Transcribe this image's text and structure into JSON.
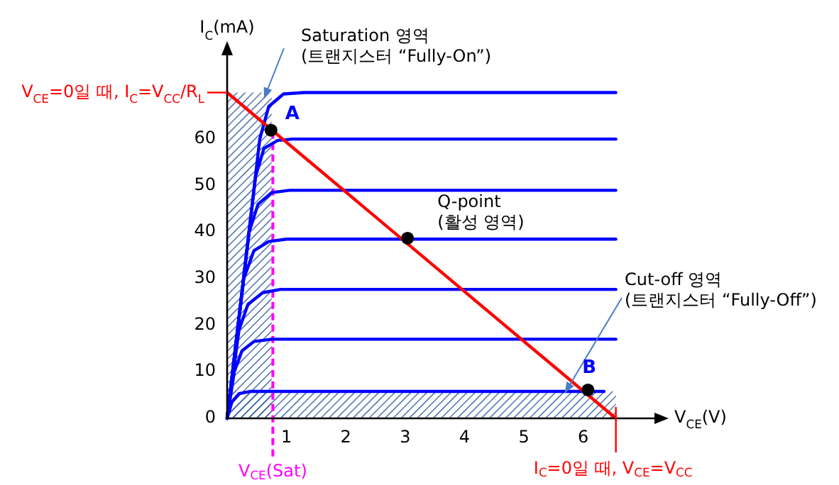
{
  "chart_data": {
    "type": "line",
    "xlabel": "V$_{CE}$(V)",
    "ylabel": "I$_{C}$(mA)",
    "xlim": [
      0,
      7.2
    ],
    "xticks": [
      1,
      2,
      3,
      4,
      5,
      6
    ],
    "ylim": [
      0,
      78
    ],
    "yticks": [
      0,
      10,
      20,
      30,
      40,
      50,
      60
    ],
    "grid": false,
    "line_style": "solid",
    "series": [
      {
        "color": "#0000ff",
        "x": [
          0,
          0.08,
          0.2,
          0.4,
          6.35
        ],
        "values": [
          0,
          3.5,
          5.3,
          5.8,
          5.8
        ]
      },
      {
        "color": "#0000ff",
        "x": [
          0,
          0.12,
          0.25,
          0.45,
          0.75,
          6.55
        ],
        "values": [
          0,
          10,
          14.5,
          16.5,
          17,
          17
        ]
      },
      {
        "color": "#0000ff",
        "x": [
          0,
          0.2,
          0.35,
          0.6,
          0.9,
          6.55
        ],
        "values": [
          0,
          19,
          24.5,
          27,
          27.7,
          27.7
        ]
      },
      {
        "color": "#0000ff",
        "x": [
          0,
          0.28,
          0.45,
          0.7,
          1.0,
          6.55
        ],
        "values": [
          0,
          30,
          36,
          38,
          38.5,
          38.5
        ]
      },
      {
        "color": "#0000ff",
        "x": [
          0,
          0.37,
          0.52,
          0.75,
          1.05,
          6.55
        ],
        "values": [
          0,
          40,
          46,
          48.5,
          49,
          49
        ]
      },
      {
        "color": "#0000ff",
        "x": [
          0,
          0.48,
          0.62,
          0.85,
          1.1,
          6.55
        ],
        "values": [
          0,
          52,
          58,
          59.7,
          60,
          60
        ]
      },
      {
        "color": "#0000ff",
        "x": [
          0,
          0.55,
          0.7,
          0.95,
          1.3,
          6.55
        ],
        "values": [
          0,
          60,
          67,
          69.7,
          70,
          70
        ]
      },
      {
        "color": "#ff0000",
        "x": [
          0,
          6.55
        ],
        "values": [
          70,
          0
        ]
      },
      {
        "type": "scatter",
        "marker": "circle",
        "color": "#000000",
        "x": [
          0.74,
          3.04,
          6.08
        ],
        "values": [
          61.9,
          38.7,
          6.1
        ]
      }
    ],
    "ref_lines": [
      {
        "axis": "x",
        "value": 0.77,
        "label": "V$_{CE}$(Sat)",
        "color": "#ff00ff",
        "line_style": "dashed"
      }
    ],
    "bands": [
      {
        "axis": "x",
        "from": 0,
        "to": 0.75,
        "label": "Saturation 영역\n(트랜지스터 “Fully-On”)",
        "color": "#1f4e9a"
      },
      {
        "axis": "y",
        "from": 0,
        "to": 5.8,
        "label": "Cut-off 영역\n(트랜지스터 “Fully-Off”)",
        "color": "#1f4e9a"
      }
    ],
    "annotations": [
      {
        "text": "A",
        "x": 0.74,
        "y": 61.9
      },
      {
        "text": "B",
        "x": 6.08,
        "y": 6.1
      },
      {
        "text": "Q-point\n(활성 영역)",
        "x": 3.04,
        "y": 38.7
      },
      {
        "text": "V$_{CE}$=0일 때, I$_{C}$=V$_{CC}$/R$_{L}$",
        "x": 0,
        "y": 70
      },
      {
        "text": "I$_{C}$=0일 때, V$_{CE}$=V$_{CC}$",
        "x": 6.55,
        "y": 0
      }
    ]
  }
}
